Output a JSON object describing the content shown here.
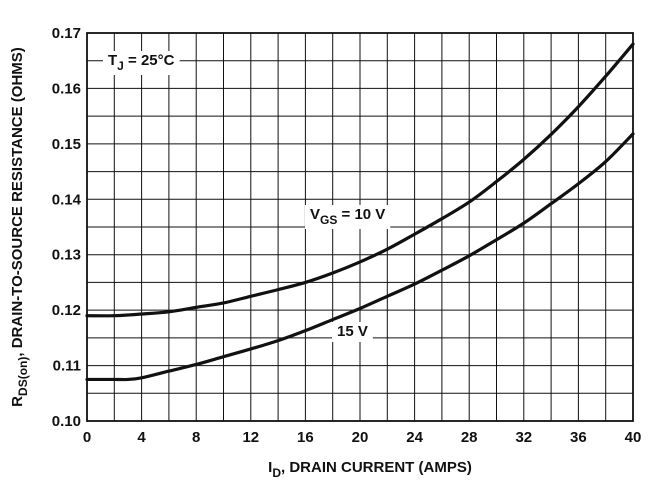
{
  "chart_data": {
    "type": "line",
    "title": "",
    "xlabel": {
      "main": "I",
      "sub": "D",
      "rest": ", DRAIN CURRENT (AMPS)"
    },
    "ylabel": {
      "main": "R",
      "sub": "DS(on)",
      "rest": ", DRAIN-TO-SOURCE RESISTANCE (OHMS)"
    },
    "xlim": [
      0,
      40
    ],
    "ylim": [
      0.1,
      0.17
    ],
    "xticks": [
      "0",
      "4",
      "8",
      "12",
      "16",
      "20",
      "24",
      "28",
      "32",
      "36",
      "40"
    ],
    "yticks": [
      "0.10",
      "0.11",
      "0.12",
      "0.13",
      "0.14",
      "0.15",
      "0.16",
      "0.17"
    ],
    "grid": true,
    "grid_x_step": 2,
    "grid_y_step": 0.005,
    "annotation": {
      "main": "T",
      "sub": "J",
      "rest": " =  25°C"
    },
    "series": [
      {
        "name": {
          "main": "V",
          "sub": "GS",
          "rest": " = 10 V"
        },
        "x": [
          0,
          2,
          4,
          6,
          8,
          10,
          12,
          14,
          16,
          18,
          20,
          22,
          24,
          26,
          28,
          30,
          32,
          34,
          36,
          38,
          40
        ],
        "y": [
          0.119,
          0.119,
          0.1193,
          0.1197,
          0.1205,
          0.1213,
          0.1225,
          0.1237,
          0.125,
          0.1267,
          0.1287,
          0.131,
          0.1337,
          0.1365,
          0.1395,
          0.1432,
          0.1472,
          0.1517,
          0.1567,
          0.1622,
          0.168
        ]
      },
      {
        "name": {
          "main": "15 V",
          "sub": "",
          "rest": ""
        },
        "x": [
          0,
          2,
          3,
          4,
          6,
          8,
          10,
          12,
          14,
          16,
          18,
          20,
          22,
          24,
          26,
          28,
          30,
          32,
          34,
          36,
          38,
          40
        ],
        "y": [
          0.1075,
          0.1075,
          0.1075,
          0.1078,
          0.109,
          0.1102,
          0.1116,
          0.113,
          0.1145,
          0.1163,
          0.1183,
          0.1203,
          0.1225,
          0.1247,
          0.1272,
          0.1298,
          0.1327,
          0.1357,
          0.1392,
          0.1428,
          0.1468,
          0.1518
        ]
      }
    ]
  }
}
